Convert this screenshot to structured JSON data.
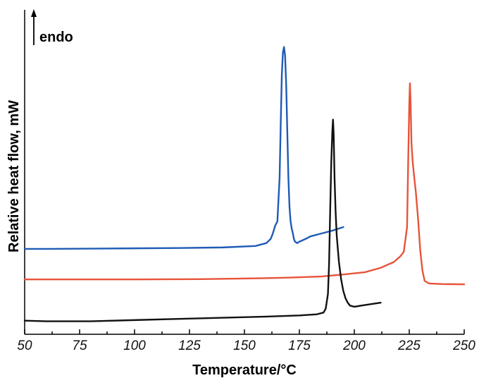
{
  "chart_data": {
    "type": "line",
    "title": "",
    "xlabel": "Temperature/°C",
    "ylabel": "Relative heat flow, mW",
    "annotation": "endo",
    "xlim": [
      50,
      250
    ],
    "ylim": [
      0,
      100
    ],
    "x_ticks": [
      50,
      75,
      100,
      125,
      150,
      175,
      200,
      225,
      250
    ],
    "grid": false,
    "legend": "none",
    "series": [
      {
        "color": "#1f5bb5",
        "x": [
          50,
          60,
          80,
          100,
          120,
          140,
          155,
          160,
          162,
          163,
          164,
          165,
          166,
          166.5,
          167,
          167.5,
          168,
          168.5,
          169,
          169.5,
          170,
          170.5,
          171,
          171.5,
          172,
          172.5,
          173,
          174,
          175,
          176,
          178,
          180,
          185,
          190,
          195
        ],
        "y": [
          25.5,
          25.5,
          25.6,
          25.7,
          25.8,
          26.0,
          26.5,
          27.5,
          29.0,
          31.0,
          33.5,
          35.0,
          50.0,
          68.0,
          85.0,
          93.0,
          95.0,
          92.0,
          82.0,
          66.0,
          50.0,
          40.0,
          35.0,
          32.5,
          31.0,
          29.0,
          28.0,
          27.5,
          28.0,
          28.3,
          29.0,
          29.8,
          30.8,
          31.8,
          33.0
        ]
      },
      {
        "color": "#e8533a",
        "x": [
          50,
          70,
          100,
          130,
          150,
          170,
          185,
          195,
          205,
          212,
          218,
          221,
          222.5,
          224,
          224.5,
          225,
          225.3,
          225.6,
          226,
          226.5,
          227,
          228,
          229,
          230,
          231,
          232,
          234,
          240,
          250
        ],
        "y": [
          15.0,
          15.0,
          15.0,
          15.1,
          15.3,
          15.6,
          16.0,
          16.7,
          17.5,
          19.0,
          21.0,
          23.0,
          24.5,
          33.0,
          55.0,
          75.0,
          82.5,
          76.0,
          62.0,
          56.0,
          52.0,
          45.0,
          36.0,
          25.0,
          18.0,
          14.5,
          13.6,
          13.4,
          13.3
        ]
      },
      {
        "color": "#111111",
        "x": [
          50,
          60,
          80,
          100,
          120,
          140,
          160,
          175,
          183,
          186,
          187,
          188,
          188.5,
          189,
          189.5,
          190,
          190.3,
          190.6,
          191,
          191.5,
          192,
          193,
          194,
          195,
          196,
          197,
          198,
          200,
          205,
          212
        ],
        "y": [
          0.8,
          0.6,
          0.6,
          1.0,
          1.4,
          1.8,
          2.2,
          2.6,
          3.0,
          3.6,
          5.0,
          10.0,
          20.0,
          38.0,
          55.0,
          66.0,
          70.0,
          65.0,
          50.0,
          38.0,
          30.0,
          21.0,
          15.0,
          11.0,
          8.5,
          7.0,
          6.0,
          5.6,
          6.2,
          7.0
        ]
      }
    ]
  }
}
